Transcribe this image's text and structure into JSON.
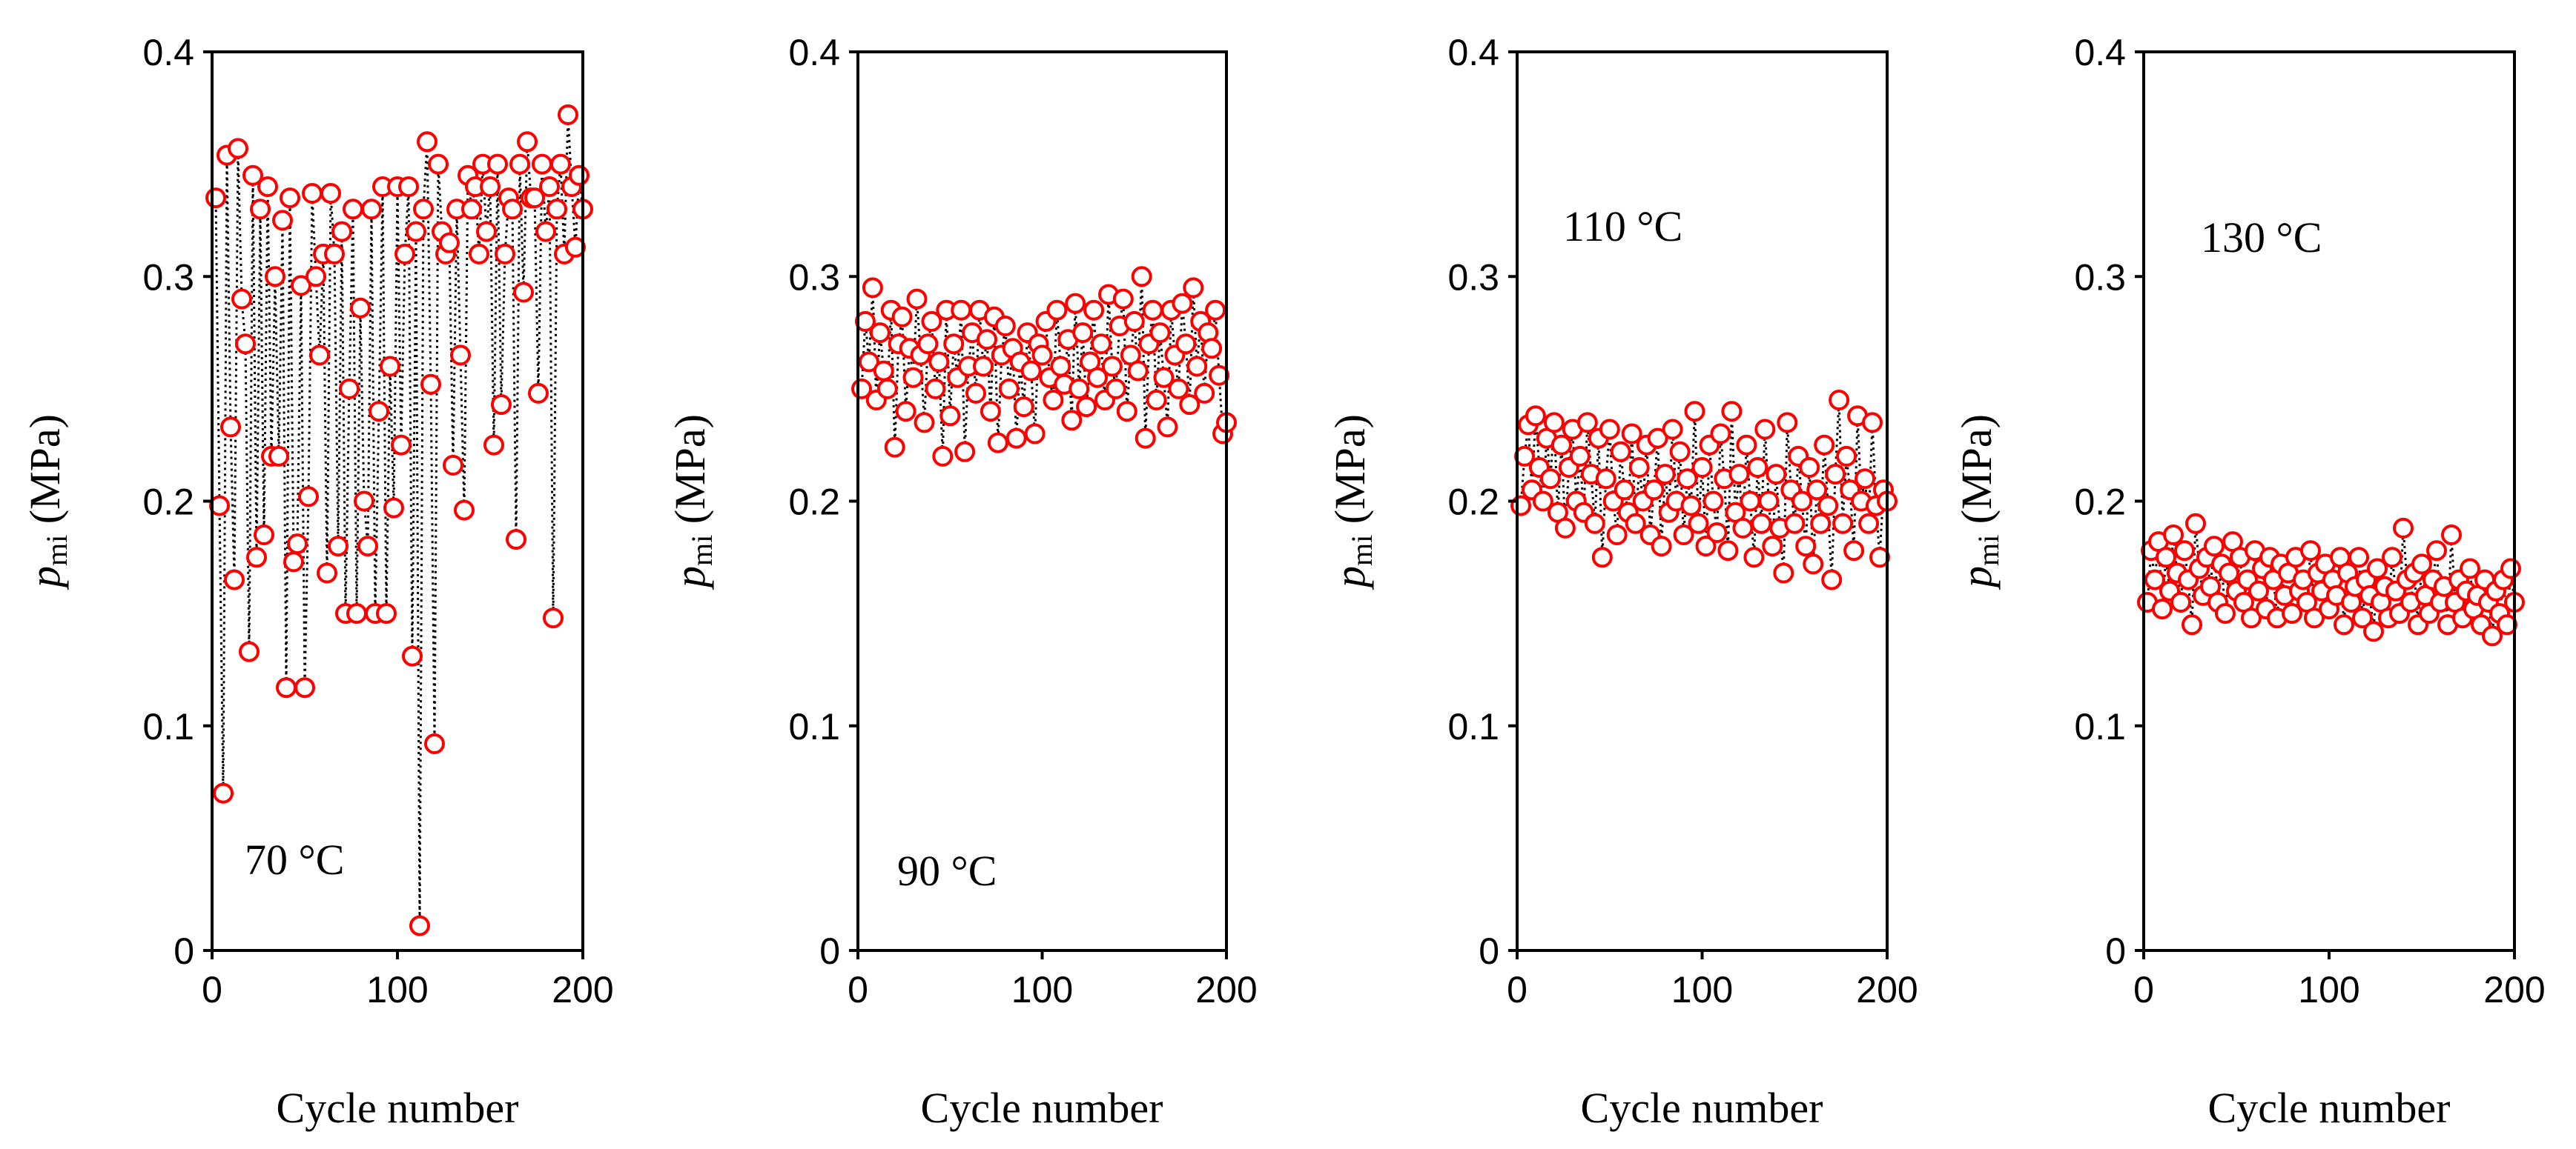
{
  "figure": {
    "colors": {
      "marker_edge": "#ff0000",
      "marker_fill": "#ffffff",
      "line": "#000000",
      "axes": "#000000"
    }
  },
  "chart_data": [
    {
      "type": "scatter",
      "title": "",
      "annotation": "70 °C",
      "xlabel": "Cycle number",
      "ylabel_main": "p",
      "ylabel_sub": "mi",
      "ylabel_unit": " (MPa)",
      "xlim": [
        0,
        200
      ],
      "ylim": [
        0,
        0.4
      ],
      "xticks": [
        0,
        100,
        200
      ],
      "xtick_labels": [
        "0",
        "100",
        "200"
      ],
      "yticks": [
        0,
        0.1,
        0.2,
        0.3,
        0.4
      ],
      "ytick_labels": [
        "0",
        "0.1",
        "0.2",
        "0.3",
        "0.4"
      ],
      "series": [
        {
          "name": "70 °C",
          "x": [
            2,
            4,
            6,
            8,
            10,
            12,
            14,
            16,
            18,
            20,
            22,
            24,
            26,
            28,
            30,
            32,
            34,
            36,
            38,
            40,
            42,
            44,
            46,
            48,
            50,
            52,
            54,
            56,
            58,
            60,
            62,
            64,
            66,
            68,
            70,
            72,
            74,
            76,
            78,
            80,
            82,
            84,
            86,
            88,
            90,
            92,
            94,
            96,
            98,
            100,
            102,
            104,
            106,
            108,
            110,
            112,
            114,
            116,
            118,
            120,
            122,
            124,
            126,
            128,
            130,
            132,
            134,
            136,
            138,
            140,
            142,
            144,
            146,
            148,
            150,
            152,
            154,
            156,
            158,
            160,
            162,
            164,
            166,
            168,
            170,
            172,
            174,
            176,
            178,
            180,
            182,
            184,
            186,
            188,
            190,
            192,
            194,
            196,
            198,
            200
          ],
          "values": [
            0.335,
            0.198,
            0.07,
            0.354,
            0.233,
            0.165,
            0.357,
            0.29,
            0.27,
            0.133,
            0.345,
            0.175,
            0.33,
            0.185,
            0.34,
            0.22,
            0.3,
            0.22,
            0.325,
            0.117,
            0.335,
            0.173,
            0.181,
            0.296,
            0.117,
            0.202,
            0.337,
            0.3,
            0.265,
            0.31,
            0.168,
            0.337,
            0.31,
            0.18,
            0.32,
            0.15,
            0.25,
            0.33,
            0.15,
            0.286,
            0.2,
            0.18,
            0.33,
            0.15,
            0.24,
            0.34,
            0.15,
            0.26,
            0.197,
            0.34,
            0.225,
            0.31,
            0.34,
            0.131,
            0.32,
            0.011,
            0.33,
            0.36,
            0.252,
            0.092,
            0.35,
            0.32,
            0.31,
            0.315,
            0.216,
            0.33,
            0.265,
            0.196,
            0.345,
            0.33,
            0.34,
            0.31,
            0.35,
            0.32,
            0.34,
            0.225,
            0.35,
            0.243,
            0.31,
            0.335,
            0.33,
            0.183,
            0.35,
            0.293,
            0.36,
            0.335,
            0.335,
            0.248,
            0.35,
            0.32,
            0.34,
            0.148,
            0.33,
            0.35,
            0.31,
            0.372,
            0.34,
            0.313,
            0.345,
            0.33
          ]
        }
      ]
    },
    {
      "type": "scatter",
      "title": "",
      "annotation": "90 °C",
      "xlabel": "Cycle number",
      "ylabel_main": "p",
      "ylabel_sub": "mi",
      "ylabel_unit": " (MPa)",
      "xlim": [
        0,
        200
      ],
      "ylim": [
        0,
        0.4
      ],
      "xticks": [
        0,
        100,
        200
      ],
      "xtick_labels": [
        "0",
        "100",
        "200"
      ],
      "yticks": [
        0,
        0.1,
        0.2,
        0.3,
        0.4
      ],
      "ytick_labels": [
        "0",
        "0.1",
        "0.2",
        "0.3",
        "0.4"
      ],
      "series": [
        {
          "name": "90 °C",
          "x": [
            2,
            4,
            6,
            8,
            10,
            12,
            14,
            16,
            18,
            20,
            22,
            24,
            26,
            28,
            30,
            32,
            34,
            36,
            38,
            40,
            42,
            44,
            46,
            48,
            50,
            52,
            54,
            56,
            58,
            60,
            62,
            64,
            66,
            68,
            70,
            72,
            74,
            76,
            78,
            80,
            82,
            84,
            86,
            88,
            90,
            92,
            94,
            96,
            98,
            100,
            102,
            104,
            106,
            108,
            110,
            112,
            114,
            116,
            118,
            120,
            122,
            124,
            126,
            128,
            130,
            132,
            134,
            136,
            138,
            140,
            142,
            144,
            146,
            148,
            150,
            152,
            154,
            156,
            158,
            160,
            162,
            164,
            166,
            168,
            170,
            172,
            174,
            176,
            178,
            180,
            182,
            184,
            186,
            188,
            190,
            192,
            194,
            196,
            198,
            200
          ],
          "values": [
            0.25,
            0.28,
            0.262,
            0.295,
            0.245,
            0.275,
            0.258,
            0.25,
            0.285,
            0.224,
            0.27,
            0.282,
            0.24,
            0.268,
            0.255,
            0.29,
            0.265,
            0.235,
            0.27,
            0.28,
            0.25,
            0.262,
            0.22,
            0.285,
            0.238,
            0.27,
            0.255,
            0.285,
            0.222,
            0.26,
            0.275,
            0.248,
            0.285,
            0.26,
            0.272,
            0.24,
            0.282,
            0.226,
            0.265,
            0.278,
            0.25,
            0.268,
            0.228,
            0.262,
            0.242,
            0.275,
            0.258,
            0.23,
            0.27,
            0.265,
            0.28,
            0.255,
            0.245,
            0.285,
            0.26,
            0.252,
            0.272,
            0.236,
            0.288,
            0.25,
            0.275,
            0.242,
            0.262,
            0.285,
            0.255,
            0.27,
            0.245,
            0.292,
            0.26,
            0.25,
            0.278,
            0.29,
            0.24,
            0.265,
            0.28,
            0.258,
            0.3,
            0.228,
            0.27,
            0.285,
            0.245,
            0.275,
            0.255,
            0.233,
            0.285,
            0.265,
            0.25,
            0.288,
            0.27,
            0.243,
            0.295,
            0.26,
            0.28,
            0.248,
            0.275,
            0.268,
            0.285,
            0.256,
            0.23,
            0.235
          ]
        }
      ]
    },
    {
      "type": "scatter",
      "title": "",
      "annotation": "110 °C",
      "xlabel": "Cycle number",
      "ylabel_main": "p",
      "ylabel_sub": "mi",
      "ylabel_unit": " (MPa)",
      "xlim": [
        0,
        200
      ],
      "ylim": [
        0,
        0.4
      ],
      "xticks": [
        0,
        100,
        200
      ],
      "xtick_labels": [
        "0",
        "100",
        "200"
      ],
      "yticks": [
        0,
        0.1,
        0.2,
        0.3,
        0.4
      ],
      "ytick_labels": [
        "0",
        "0.1",
        "0.2",
        "0.3",
        "0.4"
      ],
      "series": [
        {
          "name": "110 °C",
          "x": [
            2,
            4,
            6,
            8,
            10,
            12,
            14,
            16,
            18,
            20,
            22,
            24,
            26,
            28,
            30,
            32,
            34,
            36,
            38,
            40,
            42,
            44,
            46,
            48,
            50,
            52,
            54,
            56,
            58,
            60,
            62,
            64,
            66,
            68,
            70,
            72,
            74,
            76,
            78,
            80,
            82,
            84,
            86,
            88,
            90,
            92,
            94,
            96,
            98,
            100,
            102,
            104,
            106,
            108,
            110,
            112,
            114,
            116,
            118,
            120,
            122,
            124,
            126,
            128,
            130,
            132,
            134,
            136,
            138,
            140,
            142,
            144,
            146,
            148,
            150,
            152,
            154,
            156,
            158,
            160,
            162,
            164,
            166,
            168,
            170,
            172,
            174,
            176,
            178,
            180,
            182,
            184,
            186,
            188,
            190,
            192,
            194,
            196,
            198,
            200
          ],
          "values": [
            0.198,
            0.22,
            0.234,
            0.205,
            0.238,
            0.215,
            0.2,
            0.228,
            0.21,
            0.235,
            0.195,
            0.225,
            0.188,
            0.215,
            0.232,
            0.2,
            0.22,
            0.195,
            0.235,
            0.212,
            0.19,
            0.228,
            0.175,
            0.21,
            0.232,
            0.2,
            0.185,
            0.222,
            0.205,
            0.195,
            0.23,
            0.19,
            0.215,
            0.2,
            0.225,
            0.185,
            0.205,
            0.228,
            0.18,
            0.212,
            0.195,
            0.232,
            0.2,
            0.222,
            0.185,
            0.21,
            0.198,
            0.24,
            0.19,
            0.215,
            0.18,
            0.225,
            0.2,
            0.186,
            0.23,
            0.21,
            0.178,
            0.24,
            0.195,
            0.212,
            0.188,
            0.225,
            0.2,
            0.175,
            0.215,
            0.19,
            0.232,
            0.2,
            0.18,
            0.212,
            0.188,
            0.168,
            0.235,
            0.205,
            0.19,
            0.22,
            0.2,
            0.18,
            0.215,
            0.172,
            0.205,
            0.19,
            0.225,
            0.198,
            0.165,
            0.212,
            0.245,
            0.19,
            0.22,
            0.205,
            0.178,
            0.238,
            0.2,
            0.21,
            0.19,
            0.235,
            0.198,
            0.175,
            0.205,
            0.2
          ]
        }
      ]
    },
    {
      "type": "scatter",
      "title": "",
      "annotation": "130 °C",
      "xlabel": "Cycle number",
      "ylabel_main": "p",
      "ylabel_sub": "mi",
      "ylabel_unit": " (MPa)",
      "xlim": [
        0,
        200
      ],
      "ylim": [
        0,
        0.4
      ],
      "xticks": [
        0,
        100,
        200
      ],
      "xtick_labels": [
        "0",
        "100",
        "200"
      ],
      "yticks": [
        0,
        0.1,
        0.2,
        0.3,
        0.4
      ],
      "ytick_labels": [
        "0",
        "0.1",
        "0.2",
        "0.3",
        "0.4"
      ],
      "series": [
        {
          "name": "130 °C",
          "x": [
            2,
            4,
            6,
            8,
            10,
            12,
            14,
            16,
            18,
            20,
            22,
            24,
            26,
            28,
            30,
            32,
            34,
            36,
            38,
            40,
            42,
            44,
            46,
            48,
            50,
            52,
            54,
            56,
            58,
            60,
            62,
            64,
            66,
            68,
            70,
            72,
            74,
            76,
            78,
            80,
            82,
            84,
            86,
            88,
            90,
            92,
            94,
            96,
            98,
            100,
            102,
            104,
            106,
            108,
            110,
            112,
            114,
            116,
            118,
            120,
            122,
            124,
            126,
            128,
            130,
            132,
            134,
            136,
            138,
            140,
            142,
            144,
            146,
            148,
            150,
            152,
            154,
            156,
            158,
            160,
            162,
            164,
            166,
            168,
            170,
            172,
            174,
            176,
            178,
            180,
            182,
            184,
            186,
            188,
            190,
            192,
            194,
            196,
            198,
            200
          ],
          "values": [
            0.155,
            0.178,
            0.165,
            0.182,
            0.152,
            0.175,
            0.16,
            0.185,
            0.168,
            0.155,
            0.178,
            0.165,
            0.145,
            0.19,
            0.17,
            0.158,
            0.175,
            0.162,
            0.18,
            0.155,
            0.172,
            0.15,
            0.168,
            0.182,
            0.16,
            0.175,
            0.155,
            0.165,
            0.148,
            0.178,
            0.16,
            0.17,
            0.152,
            0.175,
            0.165,
            0.148,
            0.172,
            0.158,
            0.168,
            0.15,
            0.175,
            0.16,
            0.165,
            0.155,
            0.178,
            0.148,
            0.168,
            0.16,
            0.172,
            0.152,
            0.165,
            0.158,
            0.175,
            0.145,
            0.168,
            0.155,
            0.162,
            0.175,
            0.148,
            0.165,
            0.158,
            0.142,
            0.17,
            0.155,
            0.162,
            0.148,
            0.175,
            0.16,
            0.15,
            0.188,
            0.165,
            0.155,
            0.168,
            0.145,
            0.172,
            0.158,
            0.15,
            0.165,
            0.178,
            0.155,
            0.162,
            0.145,
            0.185,
            0.155,
            0.165,
            0.148,
            0.16,
            0.17,
            0.152,
            0.158,
            0.145,
            0.165,
            0.155,
            0.14,
            0.16,
            0.15,
            0.165,
            0.145,
            0.17,
            0.155
          ]
        }
      ]
    }
  ]
}
